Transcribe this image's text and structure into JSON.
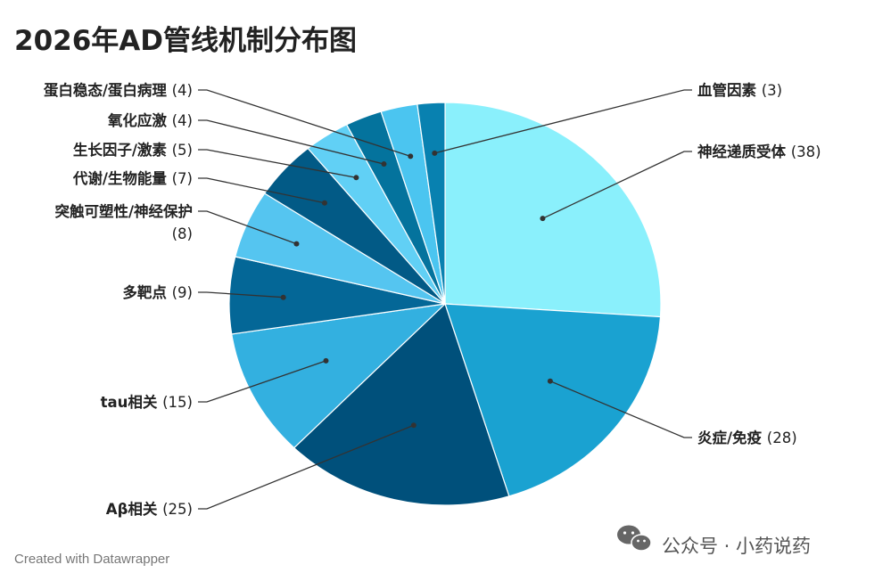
{
  "chart_data": {
    "type": "pie",
    "title": "2026年AD管线机制分布图",
    "slices": [
      {
        "label": "神经递质受体",
        "value": 38,
        "color": "#8AF0FC"
      },
      {
        "label": "炎症/免疫",
        "value": 28,
        "color": "#1AA2D1"
      },
      {
        "label": "Aβ相关",
        "value": 25,
        "color": "#00507B"
      },
      {
        "label": "tau相关",
        "value": 15,
        "color": "#33B0E0"
      },
      {
        "label": "多靶点",
        "value": 9,
        "color": "#046797"
      },
      {
        "label": "突触可塑性/神经保护",
        "value": 8,
        "color": "#55C5F0"
      },
      {
        "label": "代谢/生物能量",
        "value": 7,
        "color": "#025A86"
      },
      {
        "label": "生长因子/激素",
        "value": 5,
        "color": "#61D0F5"
      },
      {
        "label": "氧化应激",
        "value": 4,
        "color": "#04739D"
      },
      {
        "label": "蛋白稳态/蛋白病理",
        "value": 4,
        "color": "#4BC5F0"
      },
      {
        "label": "血管因素",
        "value": 3,
        "color": "#0881B0"
      }
    ]
  },
  "footer": {
    "credit": "Created with Datawrapper"
  },
  "watermark": {
    "text": "公众号 · 小药说药",
    "icon": "wechat-icon"
  }
}
